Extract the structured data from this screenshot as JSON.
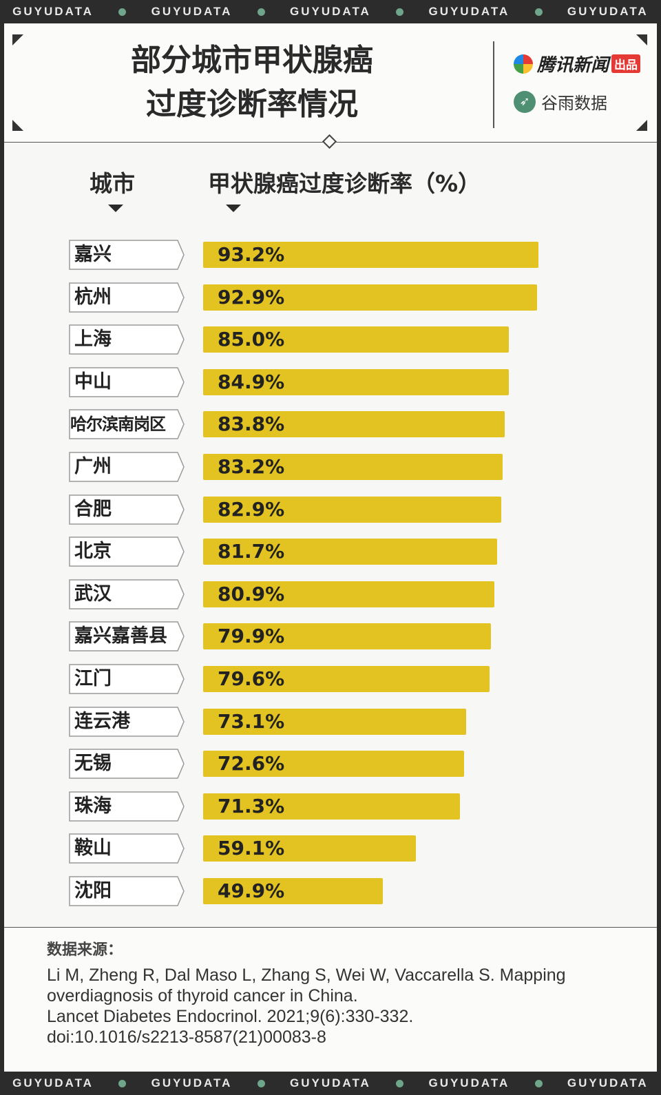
{
  "ribbon": {
    "word": "GUYUDATA"
  },
  "header": {
    "title_line1": "部分城市甲状腺癌",
    "title_line2": "过度诊断率情况",
    "brand1_name": "腾讯新闻",
    "brand1_tag": "出品",
    "brand2_name": "谷雨数据"
  },
  "chart_data": {
    "type": "bar",
    "orientation": "horizontal",
    "xlabel": "城市",
    "ylabel": "甲状腺癌过度诊断率（%）",
    "categories": [
      "嘉兴",
      "杭州",
      "上海",
      "中山",
      "哈尔滨南岗区",
      "广州",
      "合肥",
      "北京",
      "武汉",
      "嘉兴嘉善县",
      "江门",
      "连云港",
      "无锡",
      "珠海",
      "鞍山",
      "沈阳"
    ],
    "values": [
      93.2,
      92.9,
      85.0,
      84.9,
      83.8,
      83.2,
      82.9,
      81.7,
      80.9,
      79.9,
      79.6,
      73.1,
      72.6,
      71.3,
      59.1,
      49.9
    ],
    "value_labels": [
      "93.2%",
      "92.9%",
      "85.0%",
      "84.9%",
      "83.8%",
      "83.2%",
      "82.9%",
      "81.7%",
      "80.9%",
      "79.9%",
      "79.6%",
      "73.1%",
      "72.6%",
      "71.3%",
      "59.1%",
      "49.9%"
    ],
    "bar_color": "#e3c321",
    "grid": false,
    "legend": "none"
  },
  "source": {
    "title": "数据来源：",
    "lines": [
      "Li M, Zheng R, Dal Maso L, Zhang S, Wei W, Vaccarella S. Mapping",
      "overdiagnosis of thyroid cancer in China.",
      "Lancet Diabetes Endocrinol. 2021;9(6):330-332.",
      "doi:10.1016/s2213-8587(21)00083-8"
    ]
  }
}
